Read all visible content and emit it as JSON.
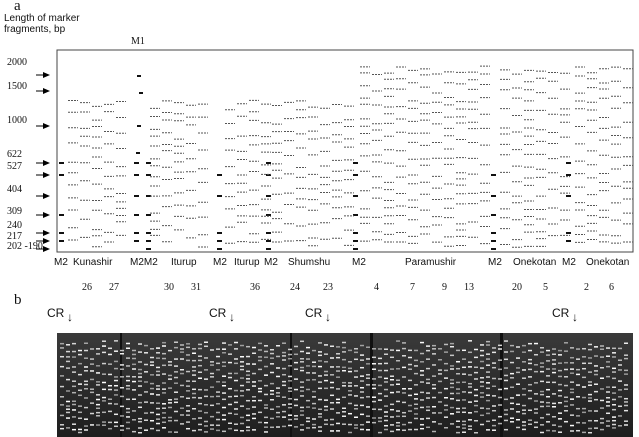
{
  "panel_a": {
    "label": "a",
    "axis_title_line1": "Length of marker",
    "axis_title_line2": "fragments, bp",
    "marker_m1": "M1",
    "size_ticks": [
      "2000",
      "1500",
      "1000",
      "622",
      "527",
      "404",
      "309",
      "240",
      "217",
      "202 -190"
    ],
    "lane_groups": [
      "M2",
      "Kunashir",
      "M2M2",
      "Iturup",
      "M2",
      "Iturup",
      "M2",
      "Shumshu",
      "M2",
      "Paramushir",
      "M2",
      "Onekotan",
      "M2",
      "Onekotan"
    ],
    "sample_numbers": [
      "26",
      "27",
      "30",
      "31",
      "36",
      "24",
      "23",
      "4",
      "7",
      "9",
      "13",
      "20",
      "5",
      "2",
      "6"
    ]
  },
  "panel_b": {
    "label": "b",
    "markers": [
      "CR",
      "CR",
      "CR",
      "CR"
    ],
    "arrow_icon": "down-arrow"
  }
}
